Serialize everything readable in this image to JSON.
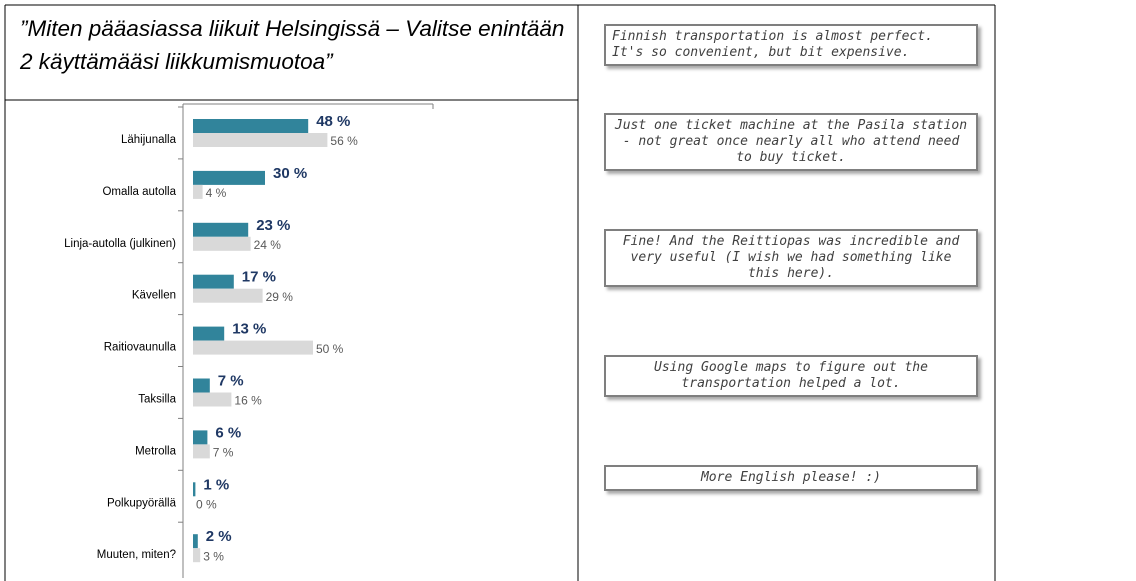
{
  "chart_data": {
    "type": "hbar",
    "title": "”Miten pääasiassa liikuit Helsingissä – Valitse enintään 2 käyttämääsi liikkumismuotoa”",
    "categories": [
      "Lähijunalla",
      "Omalla autolla",
      "Linja-autolla (julkinen)",
      "Kävellen",
      "Raitiovaunulla",
      "Taksilla",
      "Metrolla",
      "Polkupyörällä",
      "Muuten, miten?"
    ],
    "series": [
      {
        "color": "#31849b",
        "values": [
          48,
          30,
          23,
          17,
          13,
          7,
          6,
          1,
          2
        ],
        "value_labels": [
          "48 %",
          "30 %",
          "23 %",
          "17 %",
          "13 %",
          "7 %",
          "6 %",
          "1 %",
          "2 %"
        ]
      },
      {
        "color": "#d9d9d9",
        "values": [
          56,
          4,
          24,
          29,
          50,
          16,
          7,
          0,
          3
        ],
        "value_labels": [
          "56 %",
          "4 %",
          "24 %",
          "29 %",
          "50 %",
          "16 %",
          "7 %",
          "0 %",
          "3 %"
        ]
      }
    ],
    "xlim": [
      0,
      100
    ]
  },
  "quotes": [
    "Finnish transportation is almost perfect. It's so convenient, but bit expensive.",
    "Just one ticket machine at the Pasila station - not great once nearly all who attend need to buy ticket.",
    "Fine! And the Reittiopas was incredible and very useful (I wish we had something like this here).",
    "Using Google maps to figure out the transportation helped a lot.",
    "More English please! :)"
  ]
}
